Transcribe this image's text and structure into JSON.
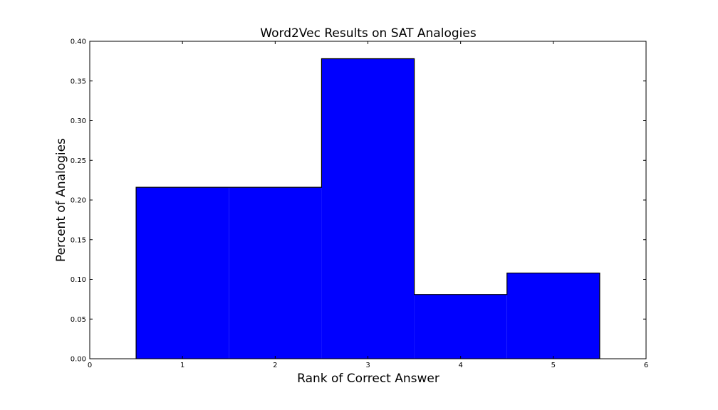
{
  "chart_data": {
    "type": "bar",
    "title": "Word2Vec Results on SAT Analogies",
    "xlabel": "Rank of Correct Answer",
    "ylabel": "Percent of Analogies",
    "xlim": [
      0,
      6
    ],
    "ylim": [
      0,
      0.4
    ],
    "xticks": [
      "0",
      "1",
      "2",
      "3",
      "4",
      "5",
      "6"
    ],
    "yticks": [
      "0.00",
      "0.05",
      "0.10",
      "0.15",
      "0.20",
      "0.25",
      "0.30",
      "0.35",
      "0.40"
    ],
    "categories": [
      "1",
      "2",
      "3",
      "4",
      "5"
    ],
    "values": [
      0.216,
      0.216,
      0.378,
      0.081,
      0.108
    ],
    "bar_color": "#0000ff",
    "edge_color": "#000000",
    "grid": false
  }
}
